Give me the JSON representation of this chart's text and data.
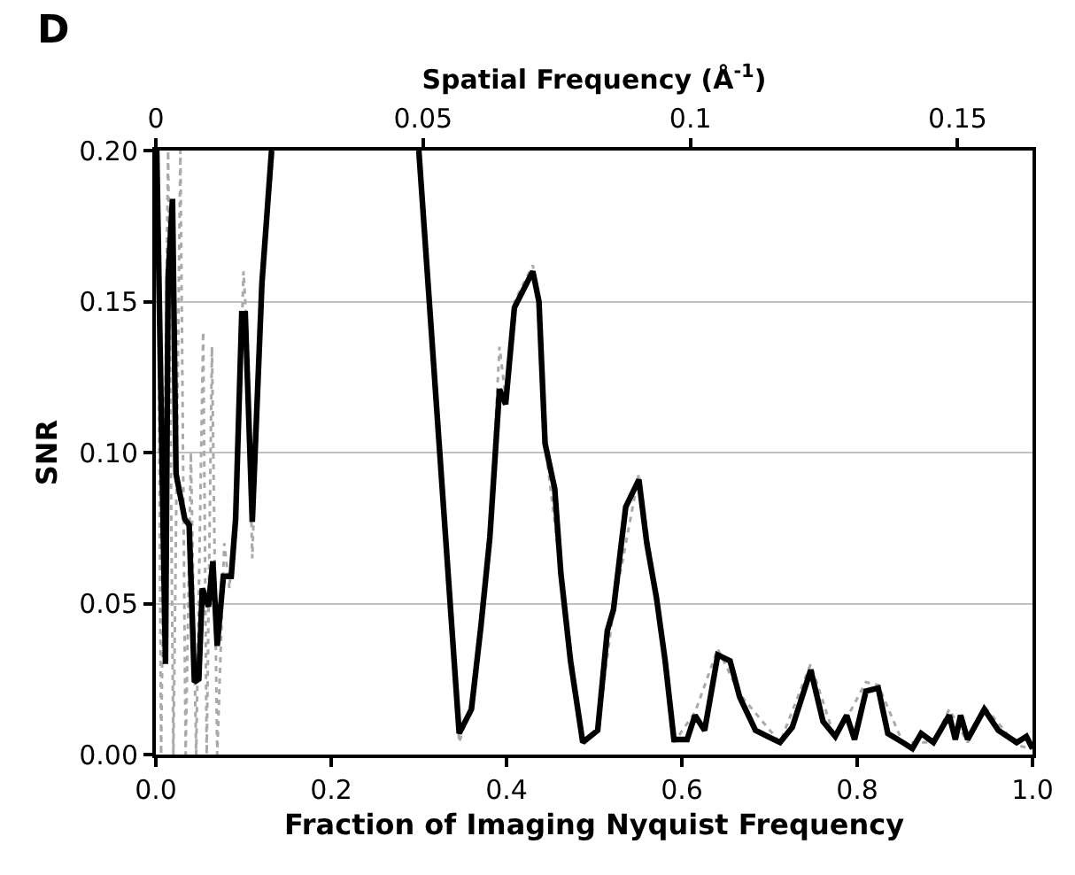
{
  "chart_data": {
    "type": "line",
    "xlabel": "Fraction of Imaging Nyquist Frequency",
    "ylabel": "SNR",
    "x2label": "Spatial Frequency (Å$^{-1}$)",
    "annotations": [
      "D"
    ],
    "xlim": [
      0,
      1
    ],
    "xticks": [
      {
        "value": 0,
        "label": "0.0"
      },
      {
        "value": 0.2,
        "label": "0.2"
      },
      {
        "value": 0.4,
        "label": "0.4"
      },
      {
        "value": 0.6,
        "label": "0.6"
      },
      {
        "value": 0.8,
        "label": "0.8"
      },
      {
        "value": 1,
        "label": "1.0"
      }
    ],
    "x2lim": [
      0,
      0.164
    ],
    "x2ticks": [
      0,
      0.05,
      0.1,
      0.15
    ],
    "ylim": [
      0,
      0.2
    ],
    "yticks": [
      {
        "value": 0,
        "label": "0.00"
      },
      {
        "value": 0.05,
        "label": "0.05"
      },
      {
        "value": 0.1,
        "label": "0.10"
      },
      {
        "value": 0.15,
        "label": "0.15"
      },
      {
        "value": 0.2,
        "label": "0.20"
      }
    ],
    "grid": "y",
    "marker": "none",
    "series": [
      {
        "color": "#aaaaaa",
        "line_style": "dotted",
        "x": [
          0.002,
          0.006,
          0.014,
          0.02,
          0.028,
          0.034,
          0.04,
          0.046,
          0.054,
          0.058,
          0.064,
          0.07,
          0.078,
          0.084,
          0.094,
          0.1,
          0.104,
          0.11,
          0.12,
          0.134,
          0.2,
          0.3,
          0.346,
          0.36,
          0.371,
          0.381,
          0.392,
          0.399,
          0.409,
          0.43,
          0.437,
          0.444,
          0.462,
          0.487,
          0.504,
          0.522,
          0.551,
          0.571,
          0.591,
          0.615,
          0.641,
          0.666,
          0.712,
          0.747,
          0.775,
          0.81,
          0.824,
          0.852,
          0.887,
          0.905,
          0.926,
          0.945,
          0.982,
          1.0
        ],
        "values": [
          0.2,
          0,
          0.2,
          0,
          0.2,
          0,
          0.1,
          0,
          0.14,
          0,
          0.135,
          0,
          0.07,
          0.055,
          0.1,
          0.16,
          0.14,
          0.065,
          0.15,
          0.2,
          null,
          0.2,
          0.004,
          0.017,
          0.045,
          0.073,
          0.135,
          0.118,
          0.15,
          0.162,
          0.15,
          0.103,
          0.06,
          0.004,
          0.008,
          0.048,
          0.093,
          0.052,
          0.004,
          0.014,
          0.035,
          0.02,
          0.004,
          0.03,
          0.005,
          0.024,
          0.023,
          0.004,
          0.004,
          0.015,
          0.004,
          0.016,
          0.003,
          0.002
        ]
      },
      {
        "color": "#000000",
        "line_style": "solid",
        "x": [
          0.001,
          0.011,
          0.014,
          0.019,
          0.023,
          0.033,
          0.038,
          0.044,
          0.049,
          0.053,
          0.06,
          0.065,
          0.07,
          0.077,
          0.086,
          0.091,
          0.098,
          0.102,
          0.11,
          0.121,
          0.132,
          0.2,
          0.3,
          0.346,
          0.36,
          0.371,
          0.381,
          0.392,
          0.399,
          0.409,
          0.43,
          0.437,
          0.444,
          0.455,
          0.462,
          0.473,
          0.487,
          0.504,
          0.515,
          0.522,
          0.536,
          0.551,
          0.56,
          0.571,
          0.581,
          0.591,
          0.606,
          0.615,
          0.626,
          0.641,
          0.655,
          0.666,
          0.684,
          0.698,
          0.712,
          0.726,
          0.747,
          0.761,
          0.775,
          0.788,
          0.797,
          0.81,
          0.824,
          0.835,
          0.852,
          0.863,
          0.873,
          0.887,
          0.905,
          0.912,
          0.918,
          0.926,
          0.945,
          0.961,
          0.982,
          0.993,
          1.0
        ],
        "values": [
          0.2,
          0.03,
          0.158,
          0.184,
          0.093,
          0.078,
          0.076,
          0.024,
          0.025,
          0.055,
          0.049,
          0.064,
          0.036,
          0.059,
          0.059,
          0.078,
          0.146,
          0.146,
          0.077,
          0.156,
          0.2,
          null,
          0.2,
          0.007,
          0.015,
          0.043,
          0.072,
          0.121,
          0.116,
          0.148,
          0.16,
          0.15,
          0.103,
          0.088,
          0.06,
          0.031,
          0.004,
          0.008,
          0.041,
          0.048,
          0.082,
          0.091,
          0.07,
          0.052,
          0.031,
          0.005,
          0.005,
          0.013,
          0.008,
          0.033,
          0.031,
          0.019,
          0.008,
          0.006,
          0.004,
          0.009,
          0.028,
          0.011,
          0.006,
          0.013,
          0.005,
          0.021,
          0.022,
          0.007,
          0.004,
          0.002,
          0.007,
          0.004,
          0.013,
          0.005,
          0.013,
          0.005,
          0.015,
          0.008,
          0.004,
          0.006,
          0.002
        ]
      }
    ]
  }
}
